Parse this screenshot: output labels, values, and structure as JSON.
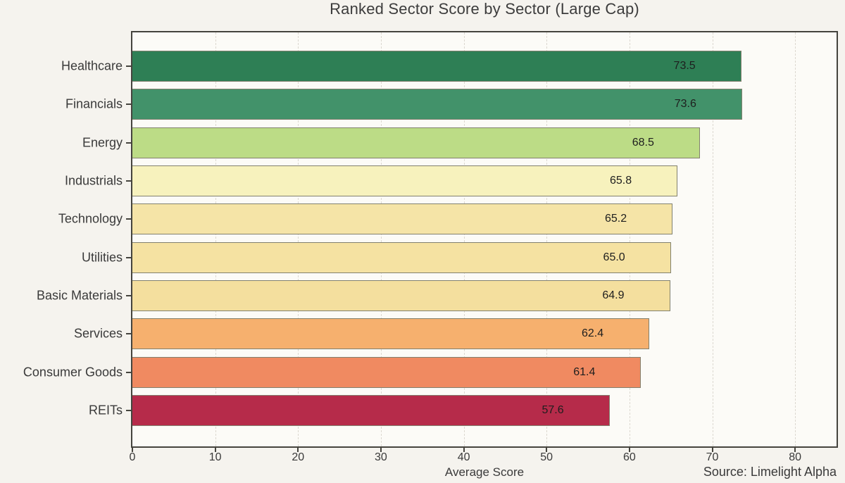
{
  "page": {
    "background": "#f5f3ee"
  },
  "chart_data": {
    "type": "bar",
    "orientation": "horizontal",
    "title": "Ranked Sector Score by Sector (Large Cap)",
    "xlabel": "Average Score",
    "ylabel": "",
    "annotation": "Source: Limelight Alpha",
    "categories": [
      "Healthcare",
      "Financials",
      "Energy",
      "Industrials",
      "Technology",
      "Utilities",
      "Basic Materials",
      "Services",
      "Consumer Goods",
      "REITs"
    ],
    "values": [
      73.5,
      73.6,
      68.5,
      65.8,
      65.2,
      65.0,
      64.9,
      62.4,
      61.4,
      57.6
    ],
    "value_label_decimals": 1,
    "bar_colors": [
      "#2e7f55",
      "#42926a",
      "#bcdc86",
      "#f7f2bd",
      "#f5e4a7",
      "#f5e2a2",
      "#f4df9e",
      "#f6b06e",
      "#f08a61",
      "#b62b4a"
    ],
    "xlim": [
      0,
      85
    ],
    "xticks": [
      0,
      10,
      20,
      30,
      40,
      50,
      60,
      70,
      80
    ],
    "grid": "vertical-dashed",
    "legend": "none",
    "style_colors": {
      "spine": "#45443e",
      "gridline": "#dcd8d0",
      "tick_text": "#3a3a3a",
      "value_text": "#1e1e1e",
      "plot_background": "#fcfbf7",
      "page_background": "#f5f3ee"
    }
  }
}
